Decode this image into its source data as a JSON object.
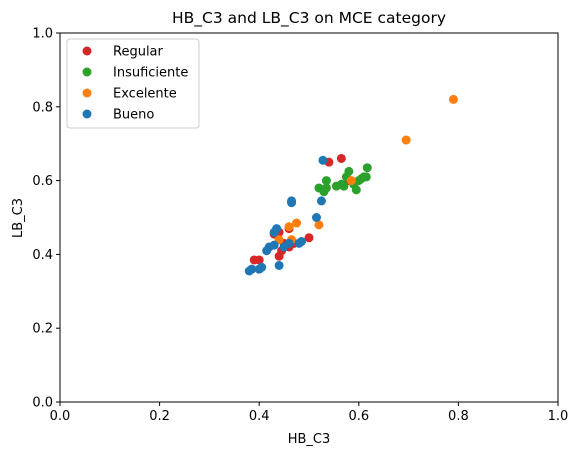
{
  "chart_data": {
    "type": "scatter",
    "title": "HB_C3 and LB_C3 on MCE category",
    "xlabel": "HB_C3",
    "ylabel": "LB_C3",
    "xlim": [
      0.0,
      1.0
    ],
    "ylim": [
      0.0,
      1.0
    ],
    "xticks": [
      "0.0",
      "0.2",
      "0.4",
      "0.6",
      "0.8",
      "1.0"
    ],
    "yticks": [
      "0.0",
      "0.2",
      "0.4",
      "0.6",
      "0.8",
      "1.0"
    ],
    "grid": false,
    "legend_position": "top-left",
    "series": [
      {
        "name": "Regular",
        "color": "#d62728",
        "points": [
          [
            0.39,
            0.385
          ],
          [
            0.4,
            0.385
          ],
          [
            0.43,
            0.455
          ],
          [
            0.44,
            0.395
          ],
          [
            0.44,
            0.46
          ],
          [
            0.445,
            0.41
          ],
          [
            0.45,
            0.43
          ],
          [
            0.46,
            0.47
          ],
          [
            0.46,
            0.42
          ],
          [
            0.47,
            0.43
          ],
          [
            0.5,
            0.445
          ],
          [
            0.54,
            0.65
          ],
          [
            0.565,
            0.66
          ],
          [
            0.58,
            0.6
          ]
        ]
      },
      {
        "name": "Insuficiente",
        "color": "#2ca02c",
        "points": [
          [
            0.52,
            0.58
          ],
          [
            0.53,
            0.57
          ],
          [
            0.535,
            0.58
          ],
          [
            0.535,
            0.6
          ],
          [
            0.555,
            0.585
          ],
          [
            0.565,
            0.59
          ],
          [
            0.57,
            0.585
          ],
          [
            0.575,
            0.61
          ],
          [
            0.58,
            0.625
          ],
          [
            0.59,
            0.59
          ],
          [
            0.595,
            0.575
          ],
          [
            0.6,
            0.6
          ],
          [
            0.605,
            0.605
          ],
          [
            0.61,
            0.61
          ],
          [
            0.615,
            0.61
          ],
          [
            0.617,
            0.635
          ]
        ]
      },
      {
        "name": "Excelente",
        "color": "#ff7f0e",
        "points": [
          [
            0.44,
            0.44
          ],
          [
            0.46,
            0.475
          ],
          [
            0.465,
            0.44
          ],
          [
            0.475,
            0.485
          ],
          [
            0.52,
            0.48
          ],
          [
            0.585,
            0.6
          ],
          [
            0.695,
            0.71
          ],
          [
            0.79,
            0.82
          ]
        ]
      },
      {
        "name": "Bueno",
        "color": "#1f77b4",
        "points": [
          [
            0.38,
            0.355
          ],
          [
            0.385,
            0.36
          ],
          [
            0.4,
            0.36
          ],
          [
            0.405,
            0.365
          ],
          [
            0.415,
            0.41
          ],
          [
            0.42,
            0.42
          ],
          [
            0.43,
            0.425
          ],
          [
            0.43,
            0.46
          ],
          [
            0.435,
            0.47
          ],
          [
            0.44,
            0.37
          ],
          [
            0.45,
            0.42
          ],
          [
            0.46,
            0.43
          ],
          [
            0.465,
            0.54
          ],
          [
            0.465,
            0.545
          ],
          [
            0.48,
            0.43
          ],
          [
            0.485,
            0.435
          ],
          [
            0.515,
            0.5
          ],
          [
            0.525,
            0.545
          ],
          [
            0.528,
            0.655
          ]
        ]
      }
    ]
  }
}
